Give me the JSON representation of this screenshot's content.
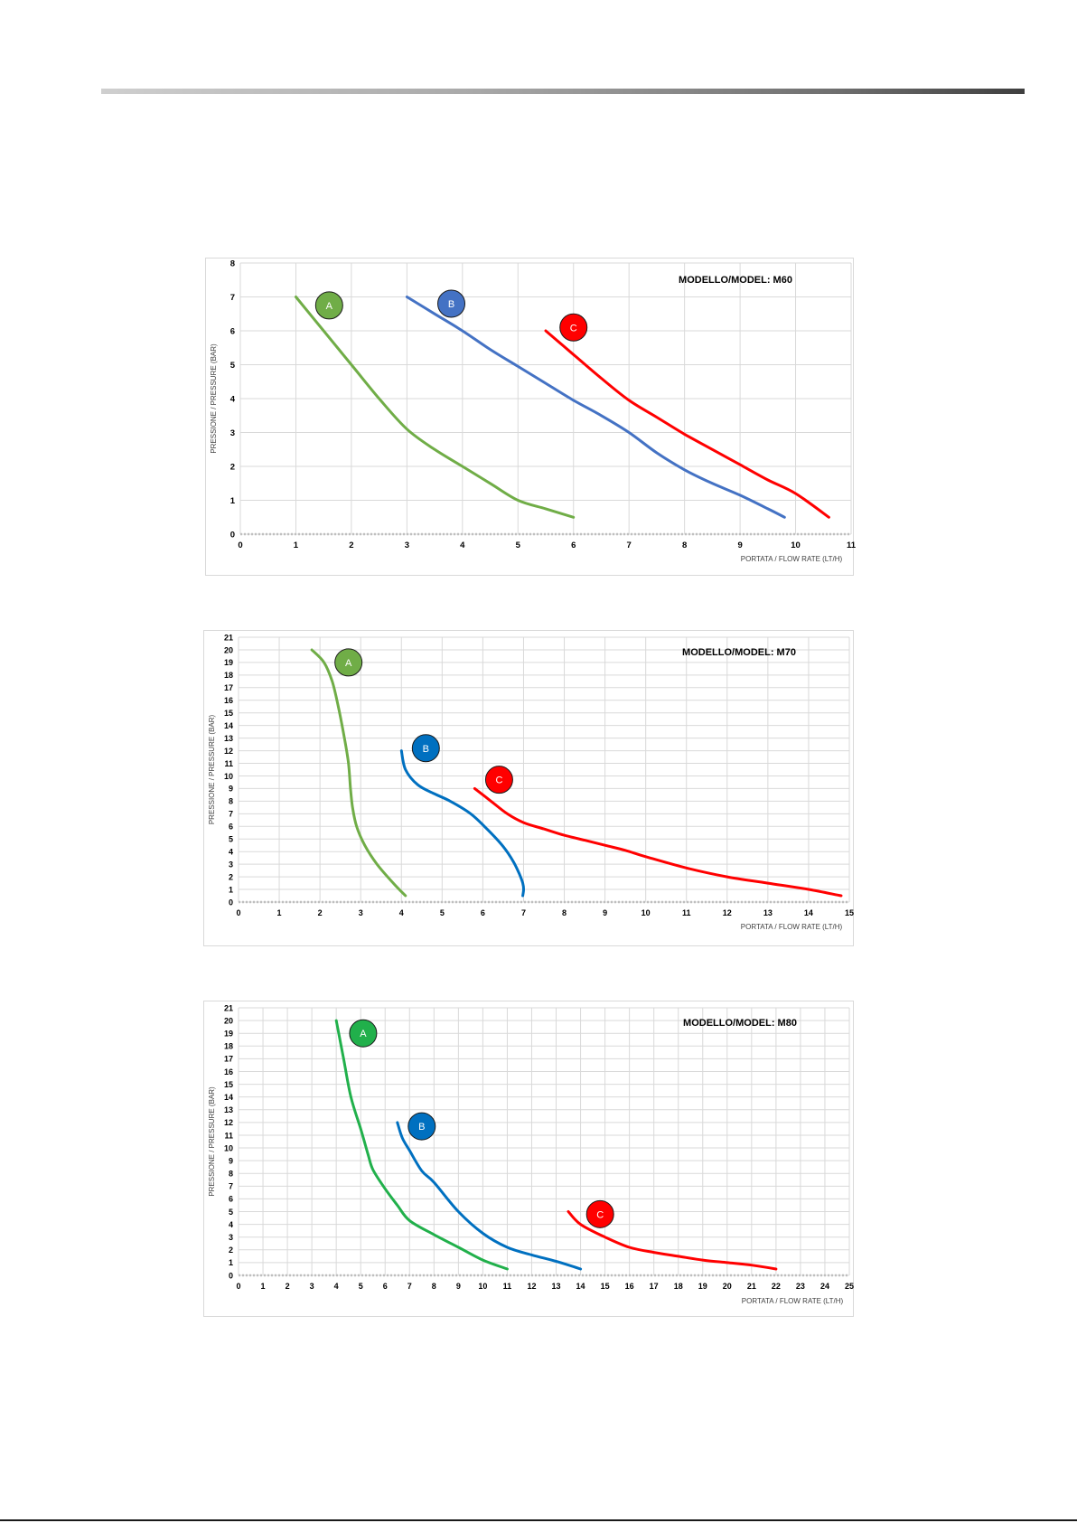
{
  "colors": {
    "green": "#70ad47",
    "green_bright": "#21b04b",
    "blue_m60": "#4472c4",
    "blue": "#0070c0",
    "red": "#ff0000",
    "grid": "#d9d9d9",
    "axis": "#bfbfbf"
  },
  "chart_data": [
    {
      "type": "line",
      "title": "MODELLO/MODEL: M60",
      "xlabel": "PORTATA / FLOW RATE (LT/H)",
      "ylabel": "PRESSIONE / PRESSURE (BAR)",
      "xlim": [
        0,
        11
      ],
      "ylim": [
        0,
        8
      ],
      "xticks": [
        "0",
        "1",
        "2",
        "3",
        "4",
        "5",
        "6",
        "7",
        "8",
        "9",
        "10",
        "11"
      ],
      "yticks": [
        "0",
        "1",
        "2",
        "3",
        "4",
        "5",
        "6",
        "7",
        "8"
      ],
      "grid": true,
      "series": [
        {
          "name": "A",
          "color": "#70ad47",
          "label_x": 1.6,
          "label_y": 6.75,
          "x": [
            1.0,
            1.5,
            2.0,
            2.5,
            3.0,
            3.5,
            4.0,
            4.5,
            5.0,
            5.5,
            6.0
          ],
          "y": [
            7.0,
            6.0,
            5.0,
            4.0,
            3.1,
            2.5,
            2.0,
            1.5,
            1.0,
            0.75,
            0.5
          ]
        },
        {
          "name": "B",
          "color": "#4472c4",
          "label_x": 3.8,
          "label_y": 6.8,
          "x": [
            3.0,
            3.5,
            4.0,
            4.5,
            5.0,
            5.5,
            6.0,
            6.5,
            7.0,
            7.5,
            8.0,
            8.5,
            9.0,
            9.5,
            9.8
          ],
          "y": [
            7.0,
            6.5,
            6.0,
            5.45,
            4.95,
            4.45,
            3.95,
            3.5,
            3.0,
            2.4,
            1.9,
            1.5,
            1.15,
            0.75,
            0.5
          ]
        },
        {
          "name": "C",
          "color": "#ff0000",
          "label_x": 6.0,
          "label_y": 6.1,
          "x": [
            5.5,
            6.0,
            6.5,
            7.0,
            7.5,
            8.0,
            8.5,
            9.0,
            9.5,
            10.0,
            10.6
          ],
          "y": [
            6.0,
            5.3,
            4.6,
            3.95,
            3.45,
            2.95,
            2.5,
            2.05,
            1.6,
            1.2,
            0.5
          ]
        }
      ]
    },
    {
      "type": "line",
      "title": "MODELLO/MODEL: M70",
      "xlabel": "PORTATA / FLOW RATE (LT/H)",
      "ylabel": "PRESSIONE / PRESSURE (BAR)",
      "xlim": [
        0,
        15
      ],
      "ylim": [
        0,
        21
      ],
      "xticks": [
        "0",
        "1",
        "2",
        "3",
        "4",
        "5",
        "6",
        "7",
        "8",
        "9",
        "10",
        "11",
        "12",
        "13",
        "14",
        "15"
      ],
      "yticks": [
        "0",
        "1",
        "2",
        "3",
        "4",
        "5",
        "6",
        "7",
        "8",
        "9",
        "10",
        "11",
        "12",
        "13",
        "14",
        "15",
        "16",
        "17",
        "18",
        "19",
        "20",
        "21"
      ],
      "grid": true,
      "series": [
        {
          "name": "A",
          "color": "#70ad47",
          "label_x": 2.7,
          "label_y": 19.0,
          "x": [
            1.8,
            2.1,
            2.3,
            2.45,
            2.6,
            2.7,
            2.75,
            2.8,
            2.9,
            3.1,
            3.4,
            3.8,
            4.1
          ],
          "y": [
            20.0,
            19.0,
            17.5,
            15.5,
            13.0,
            11.0,
            9.0,
            7.5,
            6.0,
            4.5,
            3.0,
            1.5,
            0.5
          ]
        },
        {
          "name": "B",
          "color": "#0070c0",
          "label_x": 4.6,
          "label_y": 12.2,
          "x": [
            4.0,
            4.1,
            4.4,
            4.8,
            5.2,
            5.7,
            6.1,
            6.5,
            6.75,
            6.9,
            6.98,
            7.0,
            6.98
          ],
          "y": [
            12.0,
            10.5,
            9.3,
            8.6,
            8.0,
            7.0,
            5.8,
            4.4,
            3.2,
            2.2,
            1.5,
            1.0,
            0.5
          ]
        },
        {
          "name": "C",
          "color": "#ff0000",
          "label_x": 6.4,
          "label_y": 9.7,
          "x": [
            5.8,
            6.2,
            6.6,
            7.0,
            7.5,
            8.0,
            8.5,
            9.0,
            9.5,
            10.0,
            11.0,
            12.0,
            13.0,
            14.0,
            14.8
          ],
          "y": [
            9.0,
            8.0,
            7.0,
            6.3,
            5.8,
            5.3,
            4.9,
            4.5,
            4.1,
            3.6,
            2.7,
            2.0,
            1.5,
            1.0,
            0.5
          ]
        }
      ]
    },
    {
      "type": "line",
      "title": "MODELLO/MODEL: M80",
      "xlabel": "PORTATA / FLOW RATE (LT/H)",
      "ylabel": "PRESSIONE / PRESSURE (BAR)",
      "xlim": [
        0,
        25
      ],
      "ylim": [
        0,
        21
      ],
      "xticks": [
        "0",
        "1",
        "2",
        "3",
        "4",
        "5",
        "6",
        "7",
        "8",
        "9",
        "10",
        "11",
        "12",
        "13",
        "14",
        "15",
        "16",
        "17",
        "18",
        "19",
        "20",
        "21",
        "22",
        "23",
        "24",
        "25"
      ],
      "yticks": [
        "0",
        "1",
        "2",
        "3",
        "4",
        "5",
        "6",
        "7",
        "8",
        "9",
        "10",
        "11",
        "12",
        "13",
        "14",
        "15",
        "16",
        "17",
        "18",
        "19",
        "20",
        "21"
      ],
      "grid": true,
      "series": [
        {
          "name": "A",
          "color": "#21b04b",
          "label_x": 5.1,
          "label_y": 19.0,
          "x": [
            4.0,
            4.3,
            4.6,
            5.0,
            5.3,
            5.5,
            6.0,
            6.5,
            7.0,
            8.0,
            9.0,
            10.0,
            11.0
          ],
          "y": [
            20.0,
            17.0,
            14.0,
            11.5,
            9.5,
            8.3,
            6.8,
            5.5,
            4.3,
            3.2,
            2.2,
            1.2,
            0.5
          ]
        },
        {
          "name": "B",
          "color": "#0070c0",
          "label_x": 7.5,
          "label_y": 11.7,
          "x": [
            6.5,
            6.7,
            7.0,
            7.5,
            8.0,
            9.0,
            10.0,
            11.0,
            12.0,
            13.0,
            14.0
          ],
          "y": [
            12.0,
            10.8,
            9.8,
            8.2,
            7.3,
            5.0,
            3.3,
            2.2,
            1.6,
            1.1,
            0.5
          ]
        },
        {
          "name": "C",
          "color": "#ff0000",
          "label_x": 14.8,
          "label_y": 4.8,
          "x": [
            13.5,
            14.0,
            15.0,
            16.0,
            17.0,
            18.0,
            19.0,
            20.0,
            21.0,
            22.0
          ],
          "y": [
            5.0,
            4.0,
            3.0,
            2.2,
            1.8,
            1.5,
            1.2,
            1.0,
            0.8,
            0.5
          ]
        }
      ]
    }
  ]
}
